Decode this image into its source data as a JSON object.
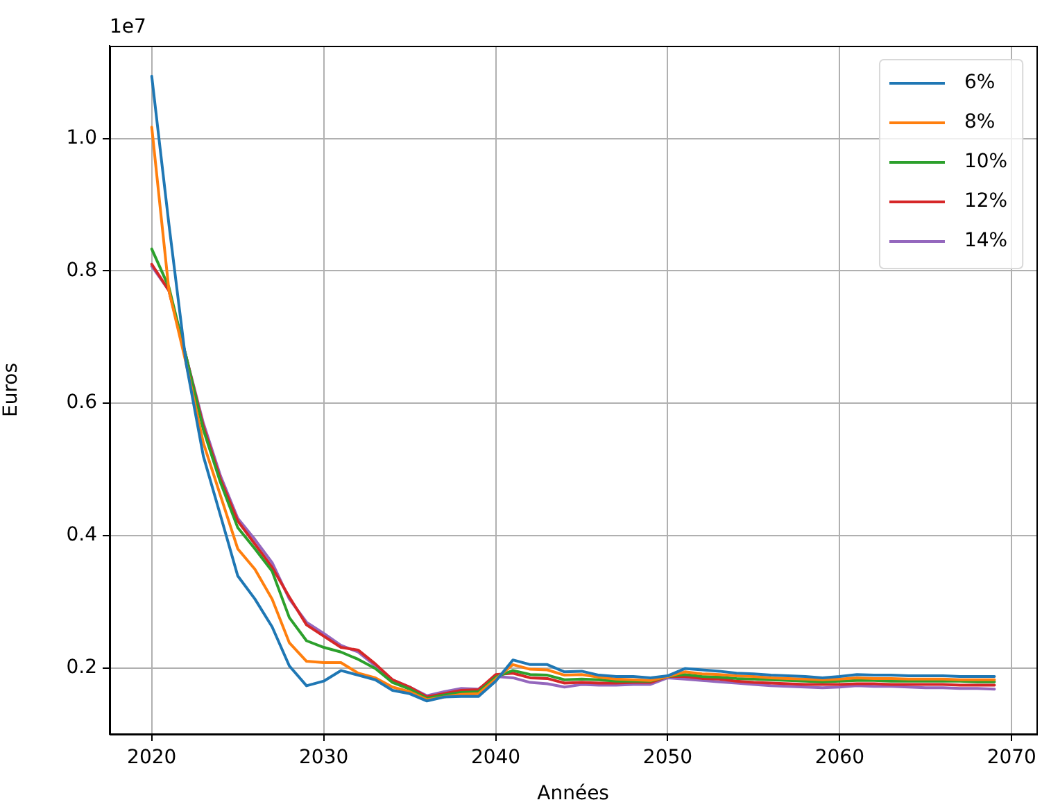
{
  "chart_data": {
    "type": "line",
    "xlabel": "Années",
    "ylabel": "Euros",
    "x": [
      2020,
      2021,
      2022,
      2023,
      2024,
      2025,
      2026,
      2027,
      2028,
      2029,
      2030,
      2031,
      2032,
      2033,
      2034,
      2035,
      2036,
      2037,
      2038,
      2039,
      2040,
      2041,
      2042,
      2043,
      2044,
      2045,
      2046,
      2047,
      2048,
      2049,
      2050,
      2051,
      2052,
      2053,
      2054,
      2055,
      2056,
      2057,
      2058,
      2059,
      2060,
      2061,
      2062,
      2063,
      2064,
      2065,
      2066,
      2067,
      2068,
      2069
    ],
    "series": [
      {
        "name": "6%",
        "color": "#1f77b4",
        "values": [
          1.094,
          0.87,
          0.66,
          0.52,
          0.43,
          0.339,
          0.304,
          0.262,
          0.203,
          0.173,
          0.18,
          0.196,
          0.189,
          0.182,
          0.166,
          0.161,
          0.15,
          0.156,
          0.157,
          0.157,
          0.18,
          0.212,
          0.205,
          0.205,
          0.194,
          0.195,
          0.189,
          0.187,
          0.187,
          0.185,
          0.188,
          0.199,
          0.197,
          0.195,
          0.192,
          0.191,
          0.189,
          0.188,
          0.187,
          0.185,
          0.187,
          0.19,
          0.189,
          0.189,
          0.188,
          0.188,
          0.188,
          0.187,
          0.187,
          0.187
        ]
      },
      {
        "name": "8%",
        "color": "#ff7f0e",
        "values": [
          1.017,
          0.77,
          0.66,
          0.54,
          0.46,
          0.38,
          0.349,
          0.304,
          0.238,
          0.21,
          0.208,
          0.208,
          0.192,
          0.185,
          0.171,
          0.164,
          0.152,
          0.156,
          0.16,
          0.161,
          0.183,
          0.205,
          0.198,
          0.197,
          0.189,
          0.19,
          0.186,
          0.183,
          0.182,
          0.181,
          0.187,
          0.194,
          0.191,
          0.19,
          0.188,
          0.187,
          0.185,
          0.184,
          0.183,
          0.182,
          0.183,
          0.185,
          0.184,
          0.184,
          0.183,
          0.183,
          0.183,
          0.182,
          0.182,
          0.182
        ]
      },
      {
        "name": "10%",
        "color": "#2ca02c",
        "values": [
          0.833,
          0.775,
          0.67,
          0.56,
          0.48,
          0.412,
          0.38,
          0.346,
          0.276,
          0.241,
          0.231,
          0.224,
          0.213,
          0.199,
          0.178,
          0.168,
          0.154,
          0.159,
          0.163,
          0.164,
          0.186,
          0.196,
          0.19,
          0.189,
          0.182,
          0.183,
          0.182,
          0.18,
          0.18,
          0.18,
          0.187,
          0.19,
          0.187,
          0.186,
          0.184,
          0.183,
          0.182,
          0.181,
          0.18,
          0.179,
          0.18,
          0.181,
          0.181,
          0.18,
          0.18,
          0.18,
          0.18,
          0.18,
          0.179,
          0.179
        ]
      },
      {
        "name": "12%",
        "color": "#d62728",
        "values": [
          0.81,
          0.77,
          0.67,
          0.565,
          0.485,
          0.422,
          0.387,
          0.352,
          0.307,
          0.265,
          0.248,
          0.231,
          0.227,
          0.206,
          0.182,
          0.171,
          0.156,
          0.161,
          0.166,
          0.167,
          0.19,
          0.192,
          0.185,
          0.184,
          0.177,
          0.178,
          0.177,
          0.177,
          0.178,
          0.178,
          0.187,
          0.187,
          0.184,
          0.183,
          0.18,
          0.178,
          0.177,
          0.176,
          0.175,
          0.175,
          0.175,
          0.176,
          0.176,
          0.175,
          0.175,
          0.175,
          0.175,
          0.174,
          0.174,
          0.174
        ]
      },
      {
        "name": "14%",
        "color": "#9467bd",
        "values": [
          0.807,
          0.77,
          0.67,
          0.57,
          0.49,
          0.426,
          0.394,
          0.359,
          0.304,
          0.269,
          0.252,
          0.234,
          0.224,
          0.203,
          0.182,
          0.171,
          0.158,
          0.164,
          0.169,
          0.168,
          0.187,
          0.185,
          0.178,
          0.176,
          0.171,
          0.175,
          0.174,
          0.174,
          0.175,
          0.175,
          0.185,
          0.183,
          0.181,
          0.179,
          0.177,
          0.175,
          0.173,
          0.172,
          0.171,
          0.17,
          0.171,
          0.173,
          0.172,
          0.172,
          0.171,
          0.17,
          0.17,
          0.169,
          0.169,
          0.168
        ]
      }
    ],
    "xlim": [
      2017.55,
      2071.45
    ],
    "xticks": [
      2020,
      2030,
      2040,
      2050,
      2060,
      2070
    ],
    "ylim": [
      0.1,
      1.14
    ],
    "yticks": [
      0.2,
      0.4,
      0.6,
      0.8,
      {
        "value": 1.0,
        "label": "1.0"
      }
    ],
    "annotations": [
      "1e7"
    ],
    "grid": true,
    "legend": "top right",
    "marker": "none",
    "line_style": "solid"
  }
}
